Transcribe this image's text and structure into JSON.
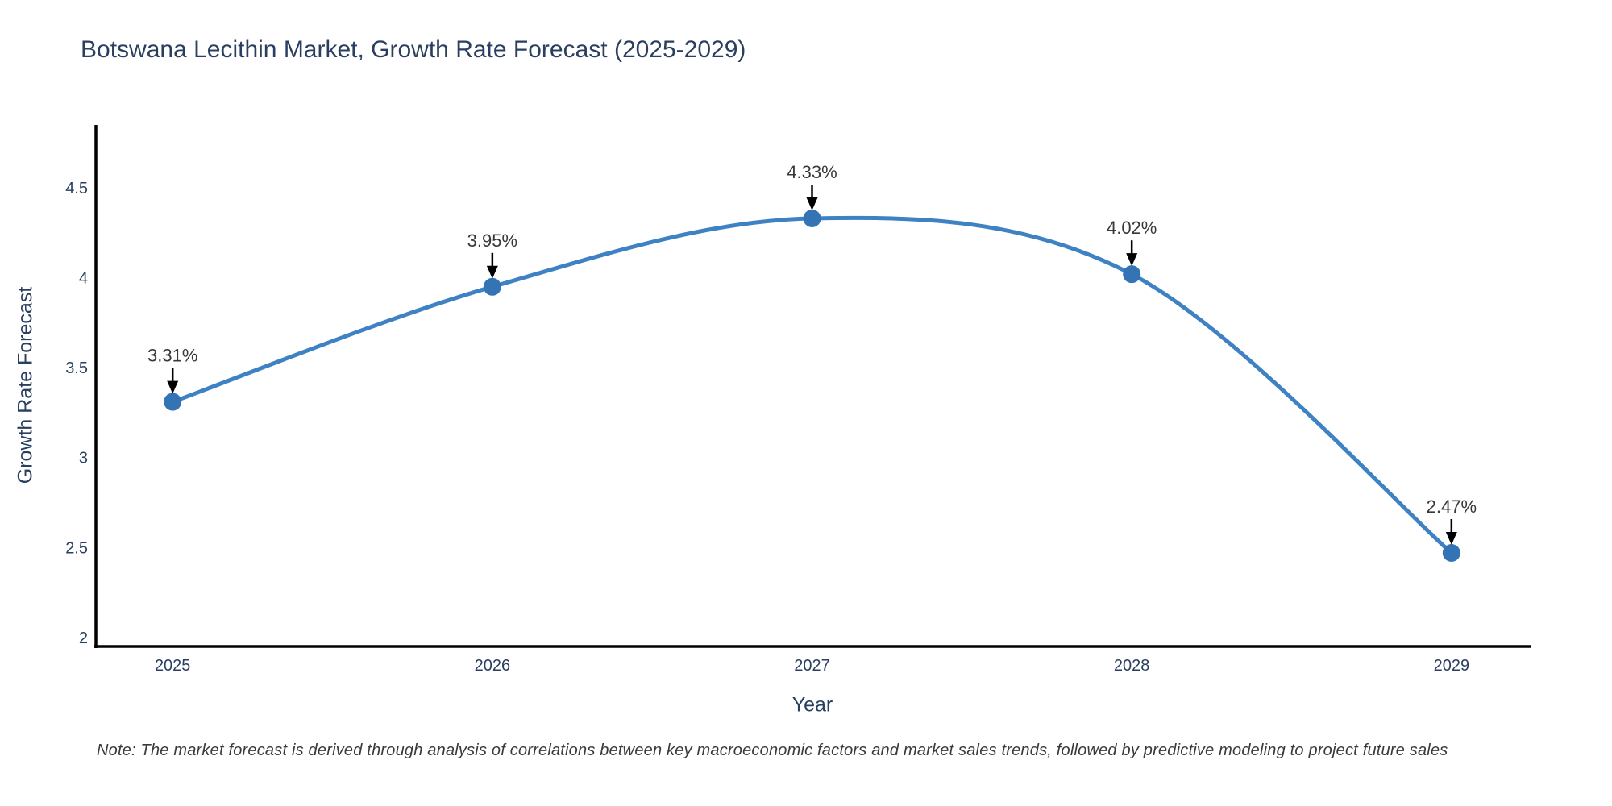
{
  "title": "Botswana Lecithin Market, Growth Rate Forecast (2025-2029)",
  "note": "Note: The market forecast is derived through analysis of correlations between key macroeconomic factors and market sales trends, followed by predictive modeling to project future sales",
  "chart_data": {
    "type": "line",
    "line_shape": "spline",
    "title": "Botswana Lecithin Market, Growth Rate Forecast (2025-2029)",
    "xlabel": "Year",
    "ylabel": "Growth Rate Forecast",
    "x": [
      2025,
      2026,
      2027,
      2028,
      2029
    ],
    "y": [
      3.31,
      3.95,
      4.33,
      4.02,
      2.47
    ],
    "point_labels": [
      "3.31%",
      "3.95%",
      "4.33%",
      "4.02%",
      "2.47%"
    ],
    "x_tick_labels": [
      "2025",
      "2026",
      "2027",
      "2028",
      "2029"
    ],
    "y_ticks": [
      2,
      2.5,
      3,
      3.5,
      4,
      4.5
    ],
    "y_tick_labels": [
      "2",
      "2.5",
      "3",
      "3.5",
      "4",
      "4.5"
    ],
    "xlim": [
      2024.76,
      2029.25
    ],
    "ylim": [
      1.95,
      4.85
    ],
    "grid": false,
    "legend": "none",
    "colors": {
      "line": "#3e82c4",
      "marker": "#3474b5",
      "axis_line": "#000000",
      "tick_label": "#2a3f5f",
      "title_text": "#2a3f5f",
      "annotation_text": "#383838",
      "arrow": "#000000",
      "background": "#ffffff"
    }
  }
}
